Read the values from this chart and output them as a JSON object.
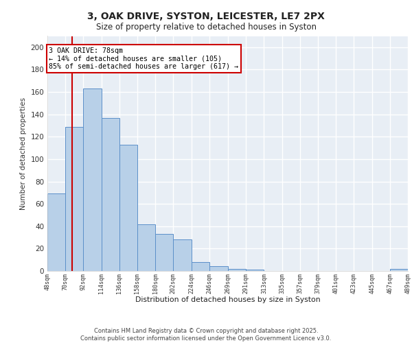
{
  "title_line1": "3, OAK DRIVE, SYSTON, LEICESTER, LE7 2PX",
  "title_line2": "Size of property relative to detached houses in Syston",
  "xlabel": "Distribution of detached houses by size in Syston",
  "ylabel": "Number of detached properties",
  "bar_edges": [
    48,
    70,
    92,
    114,
    136,
    158,
    180,
    202,
    224,
    246,
    269,
    291,
    313,
    335,
    357,
    379,
    401,
    423,
    445,
    467,
    489
  ],
  "bar_heights": [
    69,
    129,
    163,
    137,
    113,
    42,
    33,
    28,
    8,
    4,
    2,
    1,
    0,
    0,
    0,
    0,
    0,
    0,
    0,
    2
  ],
  "bar_color": "#b8d0e8",
  "bar_edgecolor": "#5b8fc9",
  "property_line_x": 78,
  "property_line_color": "#cc0000",
  "annotation_text": "3 OAK DRIVE: 78sqm\n← 14% of detached houses are smaller (105)\n85% of semi-detached houses are larger (617) →",
  "annotation_box_color": "white",
  "annotation_box_edgecolor": "#cc0000",
  "ylim": [
    0,
    210
  ],
  "yticks": [
    0,
    20,
    40,
    60,
    80,
    100,
    120,
    140,
    160,
    180,
    200
  ],
  "tick_labels": [
    "48sqm",
    "70sqm",
    "92sqm",
    "114sqm",
    "136sqm",
    "158sqm",
    "180sqm",
    "202sqm",
    "224sqm",
    "246sqm",
    "269sqm",
    "291sqm",
    "313sqm",
    "335sqm",
    "357sqm",
    "379sqm",
    "401sqm",
    "423sqm",
    "445sqm",
    "467sqm",
    "489sqm"
  ],
  "footer_text": "Contains HM Land Registry data © Crown copyright and database right 2025.\nContains public sector information licensed under the Open Government Licence v3.0.",
  "background_color": "#e8eef5",
  "grid_color": "#ffffff"
}
